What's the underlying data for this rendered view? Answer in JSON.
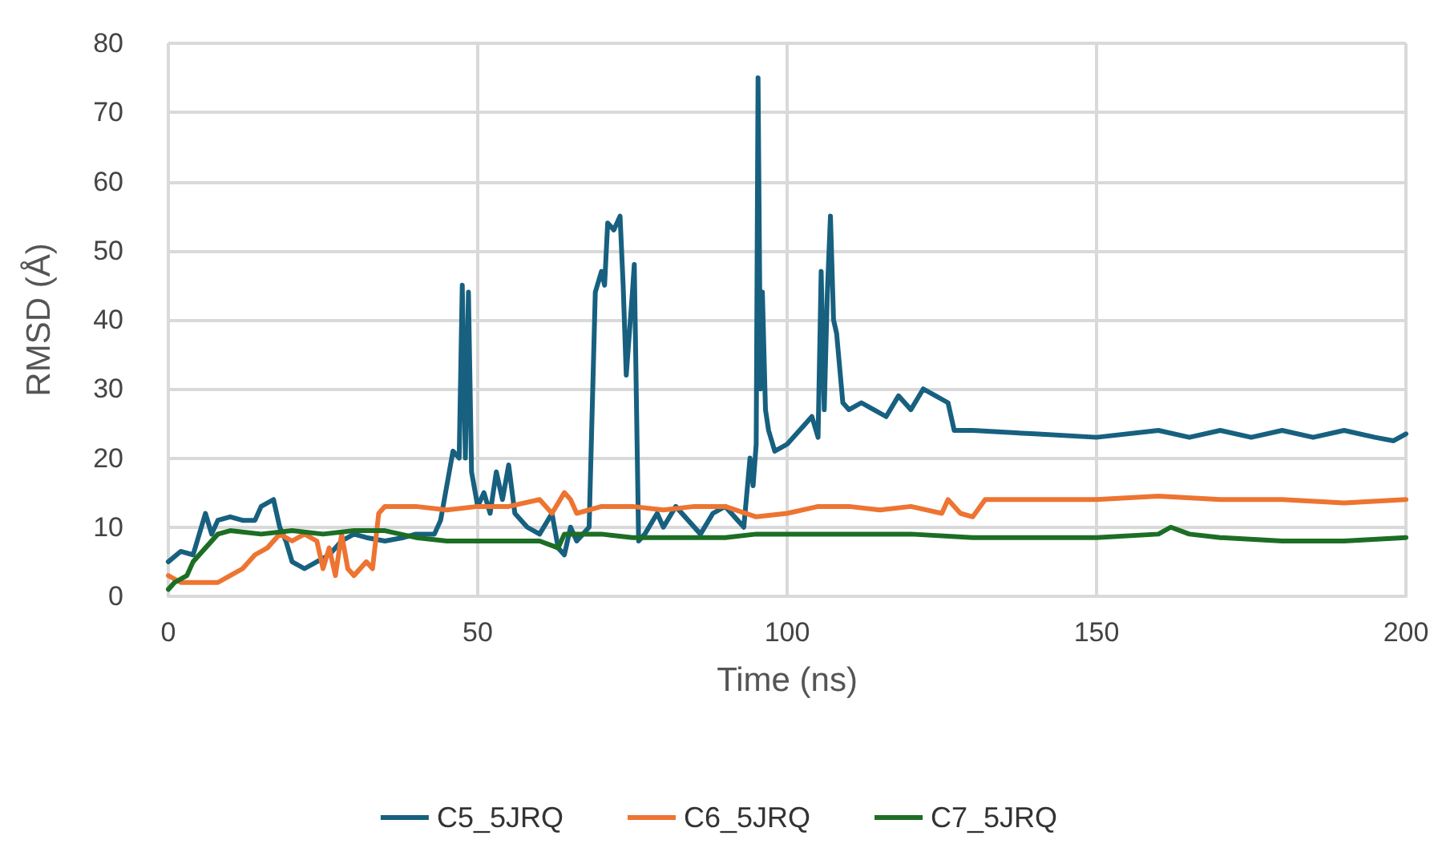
{
  "chart_data": {
    "type": "line",
    "xlabel": "Time (ns)",
    "ylabel": "RMSD (Å)",
    "xlim": [
      0,
      200
    ],
    "xticks": [
      0,
      50,
      100,
      150,
      200
    ],
    "ylim": [
      0,
      80
    ],
    "yticks": [
      0,
      10,
      20,
      30,
      40,
      50,
      60,
      70,
      80
    ],
    "grid": true,
    "legend": "bottom",
    "marker": "none",
    "line_style": "solid",
    "series": [
      {
        "name": "C5_5JRQ",
        "color": "#17607f",
        "x": [
          0,
          2,
          4,
          5,
          6,
          7,
          8,
          10,
          12,
          14,
          15,
          17,
          18,
          19,
          20,
          22,
          24,
          26,
          28,
          30,
          32,
          35,
          38,
          40,
          43,
          44,
          45,
          46,
          47,
          47.5,
          48,
          48.5,
          49,
          50,
          51,
          52,
          53,
          54,
          55,
          56,
          58,
          60,
          62,
          63,
          64,
          65,
          66,
          67,
          68,
          69,
          70,
          70.5,
          71,
          72,
          73,
          73.5,
          74,
          75,
          75.3,
          76,
          77,
          79,
          80,
          82,
          84,
          86,
          88,
          90,
          92,
          93,
          94,
          94.5,
          95,
          95.3,
          95.7,
          96,
          96.5,
          97,
          98,
          100,
          102,
          104,
          105,
          105.5,
          106,
          106.5,
          107,
          107.5,
          108,
          109,
          110,
          112,
          114,
          116,
          118,
          120,
          122,
          124,
          126,
          127,
          130,
          140,
          150,
          160,
          165,
          170,
          175,
          180,
          185,
          190,
          195,
          198,
          200
        ],
        "values": [
          5,
          6.5,
          6,
          9,
          12,
          9,
          11,
          11.5,
          11,
          11,
          13,
          14,
          10,
          8,
          5,
          4,
          5,
          6,
          8,
          9,
          8.5,
          8,
          8.5,
          9,
          9,
          11,
          16,
          21,
          20,
          45,
          20,
          44,
          18,
          13,
          15,
          12,
          18,
          14,
          19,
          12,
          10,
          9,
          12,
          7,
          6,
          10,
          8,
          9,
          10,
          44,
          47,
          45,
          54,
          53,
          55,
          45,
          32,
          44,
          48,
          8,
          9,
          12,
          10,
          13,
          11,
          9,
          12,
          13,
          11,
          10,
          20,
          16,
          22,
          75,
          30,
          44,
          27,
          24,
          21,
          22,
          24,
          26,
          23,
          47,
          27,
          44,
          55,
          40,
          38,
          28,
          27,
          28,
          27,
          26,
          29,
          27,
          30,
          29,
          28,
          24,
          24,
          23.5,
          23,
          24,
          23,
          24,
          23,
          24,
          23,
          24,
          23,
          22.5,
          23.5
        ]
      },
      {
        "name": "C6_5JRQ",
        "color": "#ed7431",
        "x": [
          0,
          2,
          5,
          8,
          10,
          12,
          14,
          16,
          18,
          20,
          22,
          24,
          25,
          26,
          27,
          28,
          29,
          30,
          32,
          33,
          34,
          35,
          40,
          45,
          50,
          55,
          60,
          62,
          64,
          65,
          66,
          70,
          75,
          80,
          85,
          90,
          95,
          100,
          105,
          110,
          115,
          120,
          125,
          126,
          128,
          130,
          132,
          140,
          150,
          160,
          170,
          180,
          190,
          200
        ],
        "values": [
          3,
          2,
          2,
          2,
          3,
          4,
          6,
          7,
          9,
          8,
          9,
          8,
          4,
          7,
          3,
          9,
          4,
          3,
          5,
          4,
          12,
          13,
          13,
          12.5,
          13,
          13,
          14,
          12,
          15,
          14,
          12,
          13,
          13,
          12.5,
          13,
          13,
          11.5,
          12,
          13,
          13,
          12.5,
          13,
          12,
          14,
          12,
          11.5,
          14,
          14,
          14,
          14.5,
          14,
          14,
          13.5,
          14
        ]
      },
      {
        "name": "C7_5JRQ",
        "color": "#1c6e24",
        "x": [
          0,
          1,
          3,
          4,
          6,
          8,
          10,
          15,
          20,
          25,
          30,
          35,
          40,
          45,
          50,
          55,
          60,
          63,
          64,
          70,
          75,
          80,
          85,
          90,
          95,
          100,
          110,
          120,
          130,
          140,
          150,
          160,
          162,
          165,
          170,
          180,
          190,
          200
        ],
        "values": [
          1,
          2,
          3,
          5,
          7,
          9,
          9.5,
          9,
          9.5,
          9,
          9.5,
          9.5,
          8.5,
          8,
          8,
          8,
          8,
          7,
          9,
          9,
          8.5,
          8.5,
          8.5,
          8.5,
          9,
          9,
          9,
          9,
          8.5,
          8.5,
          8.5,
          9,
          10,
          9,
          8.5,
          8,
          8,
          8.5
        ]
      }
    ]
  }
}
